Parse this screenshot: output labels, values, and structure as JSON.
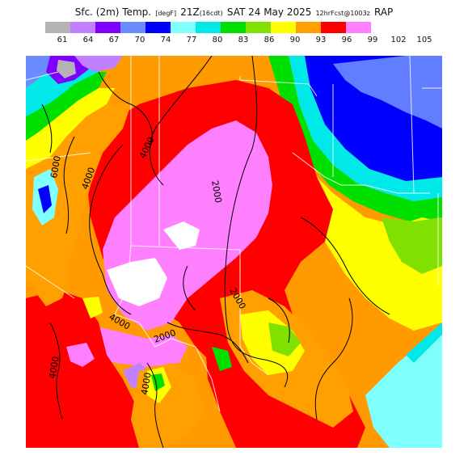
{
  "title": {
    "part1": "Sfc. (2m) Temp.",
    "unit": "[degF]",
    "part2": "21Z",
    "local_time": "(16cdt)",
    "date": "SAT 24 May 2025",
    "forecast": "12hrFcst@1003z",
    "model": "RAP"
  },
  "legend": {
    "items": [
      {
        "label": "61",
        "color": "#b4b4b4"
      },
      {
        "label": "64",
        "color": "#c080ff"
      },
      {
        "label": "67",
        "color": "#8000ff"
      },
      {
        "label": "70",
        "color": "#6a8cff"
      },
      {
        "label": "74",
        "color": "#0000ff"
      },
      {
        "label": "77",
        "color": "#80ffff"
      },
      {
        "label": "80",
        "color": "#00e8e8"
      },
      {
        "label": "83",
        "color": "#00e000"
      },
      {
        "label": "86",
        "color": "#80e000"
      },
      {
        "label": "90",
        "color": "#ffff00"
      },
      {
        "label": "93",
        "color": "#ffa000"
      },
      {
        "label": "96",
        "color": "#ff0000"
      },
      {
        "label": "99",
        "color": "#ff80ff"
      },
      {
        "label": "102",
        "color": "#ffffff"
      },
      {
        "label": "105",
        "color": ""
      }
    ]
  },
  "map": {
    "contour_labels": [
      "6000",
      "4000",
      "4000",
      "2000",
      "2000",
      "4000",
      "2000",
      "4000",
      "4000"
    ]
  }
}
